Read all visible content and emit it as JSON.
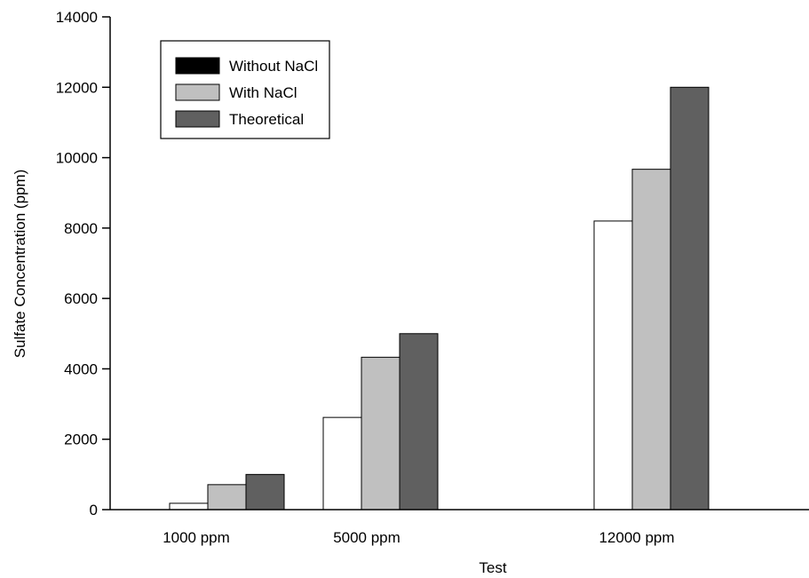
{
  "chart_data": {
    "type": "bar",
    "title": "",
    "xlabel": "Test",
    "ylabel": "Sulfate Concentration (ppm)",
    "categories": [
      "1000 ppm",
      "5000 ppm",
      "12000 ppm"
    ],
    "ylim": [
      0,
      14000
    ],
    "yticks": [
      "0",
      "2000",
      "4000",
      "6000",
      "8000",
      "10000",
      "12000",
      "14000"
    ],
    "grid": false,
    "legend_position": "top-left",
    "series": [
      {
        "name": "Without NaCl",
        "values": [
          180,
          2620,
          8200
        ],
        "color": "#ffffff",
        "legend_color": "#000000"
      },
      {
        "name": "With NaCl",
        "values": [
          710,
          4330,
          9670
        ],
        "color": "#c0c0c0",
        "legend_color": "#c0c0c0"
      },
      {
        "name": "Theoretical",
        "values": [
          1000,
          5000,
          12000
        ],
        "color": "#606060",
        "legend_color": "#606060"
      }
    ]
  }
}
